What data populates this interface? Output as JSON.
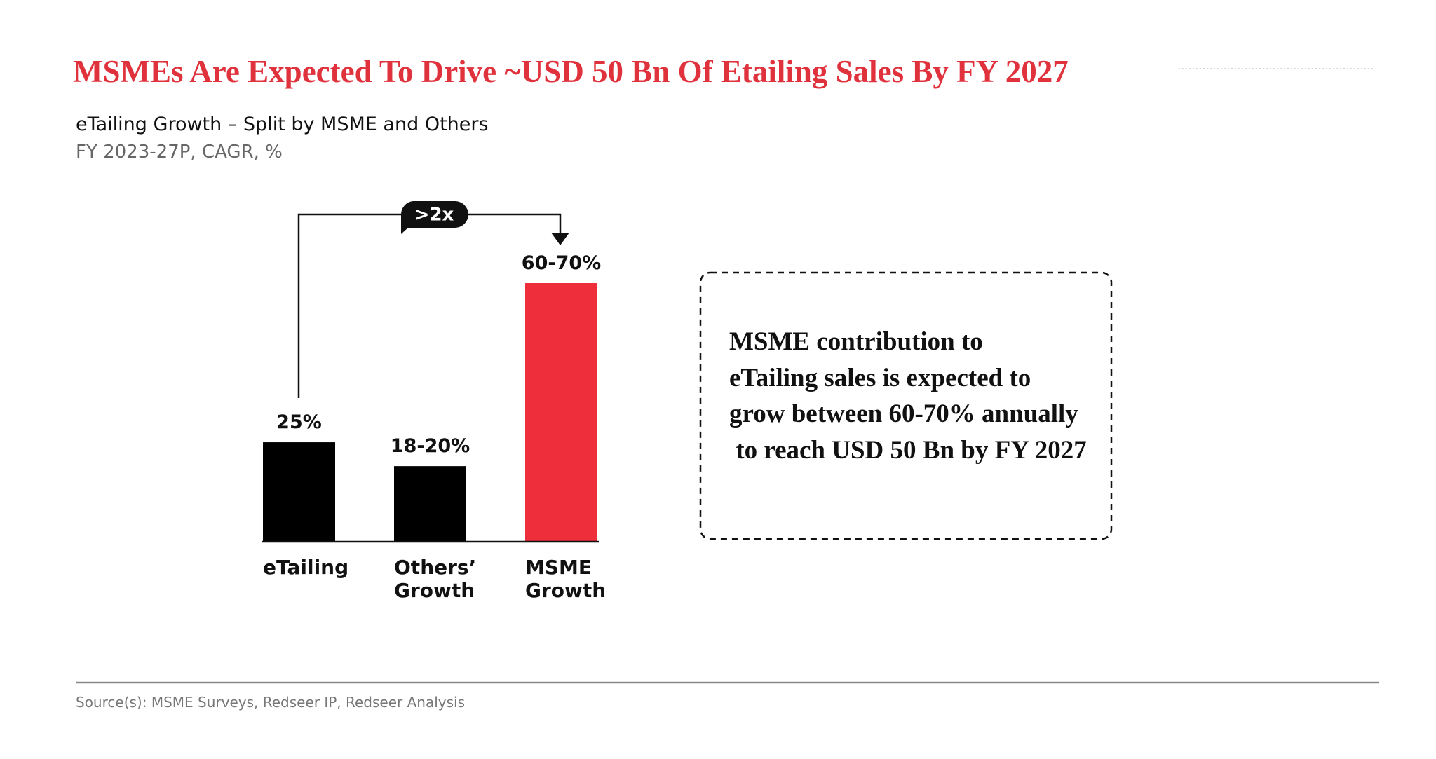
{
  "header": {
    "title": "MSMEs Are Expected To Drive ~USD 50 Bn Of Etailing Sales By FY 2027"
  },
  "chart_data": {
    "type": "bar",
    "title": "eTailing Growth – Split by MSME and Others",
    "subtitle": "FY 2023-27P, CAGR, %",
    "categories": [
      "eTailing",
      "Others’\nGrowth",
      "MSME\nGrowth"
    ],
    "values": [
      25,
      19,
      65
    ],
    "value_labels": [
      "25%",
      "18-20%",
      "60-70%"
    ],
    "colors": [
      "#000000",
      "#000000",
      "#ee2e3a"
    ],
    "annotation": ">2x"
  },
  "note": {
    "text": "MSME contribution to\neTailing sales is expected to\ngrow between 60-70% annually\n to reach USD 50 Bn by FY 2027"
  },
  "footer": {
    "source": "Source(s): MSME Surveys, Redseer IP, Redseer Analysis"
  }
}
